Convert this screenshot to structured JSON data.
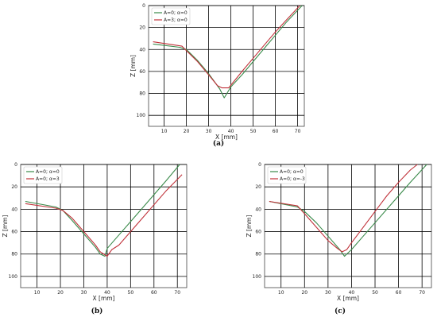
{
  "chart_data": [
    {
      "type": "line",
      "panel": "(a)",
      "xlabel": "X [mm]",
      "ylabel": "Z [mm]",
      "xlim": [
        3,
        73
      ],
      "ylim": [
        110,
        0
      ],
      "y_inverted": true,
      "xticks": [
        10,
        20,
        30,
        40,
        50,
        60,
        70
      ],
      "yticks": [
        0,
        20,
        40,
        60,
        80,
        100
      ],
      "grid": true,
      "legend_position": "top-left",
      "series": [
        {
          "name": "A=0; α=0",
          "color": "#3a8a4a",
          "x": [
            5,
            17,
            20,
            25,
            30,
            35,
            37,
            40,
            45,
            50,
            55,
            60,
            65,
            72
          ],
          "y": [
            35,
            38,
            40,
            50,
            62,
            76,
            84,
            74,
            63,
            51,
            39,
            27,
            15,
            0
          ]
        },
        {
          "name": "A=3; α=0",
          "color": "#c0323a",
          "x": [
            5,
            18,
            20,
            25,
            30,
            34,
            36,
            39,
            45,
            50,
            55,
            60,
            65,
            71
          ],
          "y": [
            33,
            37,
            41,
            51,
            63,
            73,
            75,
            75,
            60,
            48,
            36,
            24,
            13,
            0
          ]
        }
      ]
    },
    {
      "type": "line",
      "panel": "(b)",
      "xlabel": "X [mm]",
      "ylabel": "Z [mm]",
      "xlim": [
        3,
        74
      ],
      "ylim": [
        110,
        0
      ],
      "y_inverted": true,
      "xticks": [
        10,
        20,
        30,
        40,
        50,
        60,
        70
      ],
      "yticks": [
        0,
        20,
        40,
        60,
        80,
        100
      ],
      "grid": true,
      "legend_position": "top-left",
      "series": [
        {
          "name": "A=0; α=0",
          "color": "#3a8a4a",
          "x": [
            5,
            18,
            21,
            25,
            30,
            35,
            37,
            39,
            40,
            45,
            50,
            55,
            60,
            65,
            71
          ],
          "y": [
            33,
            38,
            41,
            50,
            62,
            74,
            80,
            82,
            75,
            63,
            51,
            39,
            27,
            15,
            0
          ]
        },
        {
          "name": "A=0; α=3",
          "color": "#c0323a",
          "x": [
            5,
            18,
            21,
            25,
            30,
            35,
            37,
            40,
            42,
            45,
            50,
            55,
            60,
            65,
            72
          ],
          "y": [
            35,
            39,
            41,
            48,
            60,
            72,
            78,
            82,
            76,
            72,
            60,
            48,
            36,
            24,
            9
          ]
        }
      ]
    },
    {
      "type": "line",
      "panel": "(c)",
      "xlabel": "X [mm]",
      "ylabel": "Z [mm]",
      "xlim": [
        3,
        74
      ],
      "ylim": [
        110,
        0
      ],
      "y_inverted": true,
      "xticks": [
        10,
        20,
        30,
        40,
        50,
        60,
        70
      ],
      "yticks": [
        0,
        20,
        40,
        60,
        80,
        100
      ],
      "grid": true,
      "legend_position": "top-left",
      "series": [
        {
          "name": "A=0; α=0",
          "color": "#3a8a4a",
          "x": [
            5,
            17,
            20,
            25,
            30,
            35,
            37,
            40,
            45,
            50,
            55,
            60,
            65,
            72
          ],
          "y": [
            33,
            38,
            42,
            52,
            64,
            76,
            82,
            76,
            64,
            52,
            40,
            28,
            16,
            0
          ]
        },
        {
          "name": "A=0; α=-3",
          "color": "#c0323a",
          "x": [
            5,
            17,
            20,
            25,
            30,
            34,
            36,
            38,
            40,
            45,
            50,
            55,
            60,
            65,
            68
          ],
          "y": [
            33,
            37,
            44,
            56,
            68,
            75,
            78,
            76,
            70,
            56,
            42,
            28,
            16,
            5,
            0
          ]
        }
      ]
    }
  ]
}
